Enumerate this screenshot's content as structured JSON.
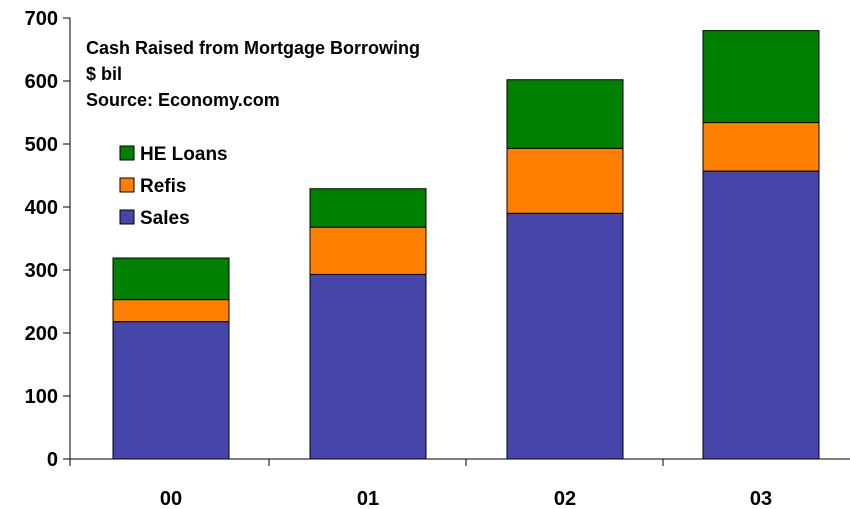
{
  "chart_data": {
    "type": "bar",
    "stacked": true,
    "title_lines": [
      "Cash Raised from Mortgage Borrowing",
      "$ bil",
      "Source: Economy.com"
    ],
    "xlabel": "",
    "ylabel": "",
    "categories": [
      "00",
      "01",
      "02",
      "03"
    ],
    "ylim": [
      0,
      700
    ],
    "yticks": [
      0,
      100,
      200,
      300,
      400,
      500,
      600,
      700
    ],
    "grid": false,
    "legend_position": "top-left",
    "series": [
      {
        "name": "Sales",
        "color": "#4545aa",
        "values": [
          218,
          293,
          390,
          457
        ]
      },
      {
        "name": "Refis",
        "color": "#ff7f00",
        "values": [
          35,
          75,
          103,
          77
        ]
      },
      {
        "name": "HE Loans",
        "color": "#008000",
        "values": [
          66,
          61,
          109,
          146
        ]
      }
    ],
    "legend_order": [
      "HE Loans",
      "Refis",
      "Sales"
    ]
  }
}
